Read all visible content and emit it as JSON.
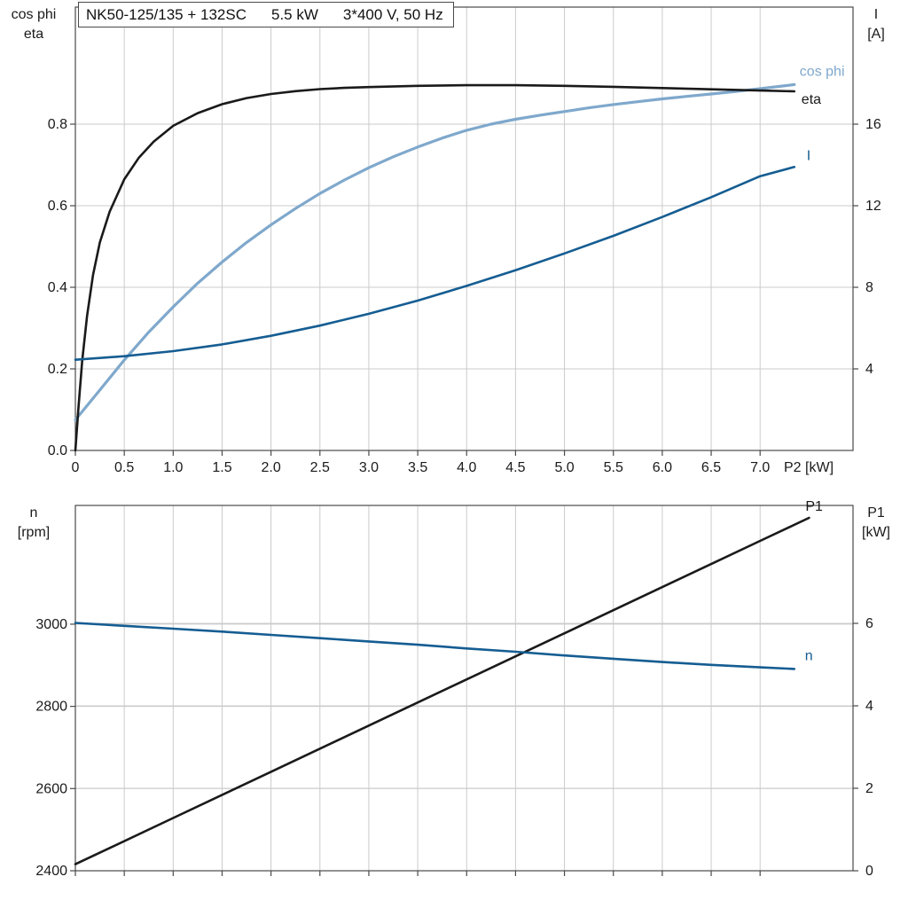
{
  "title": {
    "parts": [
      "NK50-125/135 + 132SC",
      "5.5 kW",
      "3*400 V, 50 Hz"
    ]
  },
  "colors": {
    "background": "#ffffff",
    "grid": "#cbcbcb",
    "frame": "#4a4a4a",
    "text": "#1a1a1a",
    "black_curve": "#1a1a1a",
    "light_blue_curve": "#7fa8cc",
    "dark_blue_curve": "#155d92"
  },
  "chart_data": [
    {
      "type": "line",
      "id": "electrical",
      "title": "NK50-125/135 + 132SC   5.5 kW   3*400 V, 50 Hz",
      "x_axis": {
        "title": "P2 [kW]",
        "min": 0,
        "max": 7.95,
        "tick_values": [
          0,
          0.5,
          1,
          1.5,
          2,
          2.5,
          3,
          3.5,
          4,
          4.5,
          5,
          5.5,
          6,
          6.5,
          7
        ],
        "tick_labels": [
          "0",
          "0.5",
          "1.0",
          "1.5",
          "2.0",
          "2.5",
          "3.0",
          "3.5",
          "4.0",
          "4.5",
          "5.0",
          "5.5",
          "6.0",
          "6.5",
          "7.0"
        ]
      },
      "y_left": {
        "header": [
          "cos phi",
          "eta"
        ],
        "min": 0,
        "max": 1.087,
        "tick_values": [
          0,
          0.2,
          0.4,
          0.6,
          0.8
        ],
        "tick_labels": [
          "0.0",
          "0.2",
          "0.4",
          "0.6",
          "0.8"
        ]
      },
      "y_right": {
        "header": [
          "I",
          "[A]"
        ],
        "min": 0,
        "max": 21.74,
        "tick_values": [
          4,
          8,
          12,
          16
        ],
        "tick_labels": [
          "4",
          "8",
          "12",
          "16"
        ]
      },
      "series": [
        {
          "name": "cos phi",
          "label": "cos phi",
          "axis": "left",
          "color": "#7fa8cc",
          "width": 3.2,
          "points": [
            [
              0,
              0.075
            ],
            [
              0.25,
              0.148
            ],
            [
              0.5,
              0.222
            ],
            [
              0.75,
              0.29
            ],
            [
              1,
              0.352
            ],
            [
              1.25,
              0.41
            ],
            [
              1.5,
              0.462
            ],
            [
              1.75,
              0.51
            ],
            [
              2,
              0.553
            ],
            [
              2.25,
              0.593
            ],
            [
              2.5,
              0.63
            ],
            [
              2.75,
              0.663
            ],
            [
              3,
              0.693
            ],
            [
              3.25,
              0.72
            ],
            [
              3.5,
              0.744
            ],
            [
              3.75,
              0.766
            ],
            [
              4,
              0.785
            ],
            [
              4.25,
              0.8
            ],
            [
              4.5,
              0.812
            ],
            [
              4.75,
              0.822
            ],
            [
              5,
              0.831
            ],
            [
              5.25,
              0.84
            ],
            [
              5.5,
              0.848
            ],
            [
              5.75,
              0.855
            ],
            [
              6,
              0.862
            ],
            [
              6.25,
              0.868
            ],
            [
              6.5,
              0.874
            ],
            [
              6.75,
              0.88
            ],
            [
              7,
              0.887
            ],
            [
              7.35,
              0.897
            ]
          ]
        },
        {
          "name": "eta",
          "label": "eta",
          "axis": "left",
          "color": "#1a1a1a",
          "width": 2.6,
          "points": [
            [
              0,
              0
            ],
            [
              0.03,
              0.1
            ],
            [
              0.07,
              0.22
            ],
            [
              0.12,
              0.33
            ],
            [
              0.18,
              0.43
            ],
            [
              0.25,
              0.51
            ],
            [
              0.35,
              0.585
            ],
            [
              0.5,
              0.665
            ],
            [
              0.65,
              0.718
            ],
            [
              0.8,
              0.757
            ],
            [
              1,
              0.796
            ],
            [
              1.25,
              0.827
            ],
            [
              1.5,
              0.849
            ],
            [
              1.75,
              0.864
            ],
            [
              2,
              0.874
            ],
            [
              2.25,
              0.881
            ],
            [
              2.5,
              0.886
            ],
            [
              2.75,
              0.889
            ],
            [
              3,
              0.891
            ],
            [
              3.5,
              0.894
            ],
            [
              4,
              0.8955
            ],
            [
              4.5,
              0.8955
            ],
            [
              5,
              0.894
            ],
            [
              5.5,
              0.8915
            ],
            [
              6,
              0.8885
            ],
            [
              6.5,
              0.8855
            ],
            [
              7,
              0.8825
            ],
            [
              7.35,
              0.8805
            ]
          ]
        },
        {
          "name": "I",
          "label": "I",
          "axis": "right",
          "color": "#155d92",
          "width": 2.6,
          "points": [
            [
              0,
              4.45
            ],
            [
              0.5,
              4.62
            ],
            [
              1,
              4.87
            ],
            [
              1.5,
              5.2
            ],
            [
              2,
              5.62
            ],
            [
              2.5,
              6.12
            ],
            [
              3,
              6.7
            ],
            [
              3.5,
              7.35
            ],
            [
              4,
              8.07
            ],
            [
              4.5,
              8.84
            ],
            [
              5,
              9.66
            ],
            [
              5.5,
              10.52
            ],
            [
              6,
              11.45
            ],
            [
              6.5,
              12.42
            ],
            [
              7,
              13.45
            ],
            [
              7.35,
              13.9
            ]
          ]
        }
      ]
    },
    {
      "type": "line",
      "id": "speed-power",
      "x_axis": {
        "title": "",
        "min": 0,
        "max": 7.95,
        "tick_values": [
          0,
          0.5,
          1,
          1.5,
          2,
          2.5,
          3,
          3.5,
          4,
          4.5,
          5,
          5.5,
          6,
          6.5,
          7
        ],
        "tick_labels": []
      },
      "y_left": {
        "header": [
          "n",
          "[rpm]"
        ],
        "min": 2400,
        "max": 3289,
        "tick_values": [
          2400,
          2600,
          2800,
          3000
        ],
        "tick_labels": [
          "2400",
          "2600",
          "2800",
          "3000"
        ]
      },
      "y_right": {
        "header": [
          "P1",
          "[kW]"
        ],
        "min": 0,
        "max": 8.86,
        "tick_values": [
          0,
          2,
          4,
          6
        ],
        "tick_labels": [
          "0",
          "2",
          "4",
          "6"
        ]
      },
      "series": [
        {
          "name": "P1",
          "label": "P1",
          "axis": "right",
          "color": "#1a1a1a",
          "width": 2.6,
          "points": [
            [
              0,
              0.16
            ],
            [
              1,
              1.28
            ],
            [
              2,
              2.4
            ],
            [
              3,
              3.52
            ],
            [
              4,
              4.64
            ],
            [
              5,
              5.76
            ],
            [
              6,
              6.88
            ],
            [
              7,
              8.0
            ],
            [
              7.5,
              8.56
            ]
          ]
        },
        {
          "name": "n",
          "label": "n",
          "axis": "left",
          "color": "#155d92",
          "width": 2.6,
          "points": [
            [
              0,
              3003
            ],
            [
              0.5,
              2996
            ],
            [
              1,
              2989
            ],
            [
              1.5,
              2982
            ],
            [
              2,
              2974
            ],
            [
              2.5,
              2966
            ],
            [
              3,
              2958
            ],
            [
              3.5,
              2950
            ],
            [
              4,
              2941
            ],
            [
              4.5,
              2933
            ],
            [
              5,
              2924
            ],
            [
              5.5,
              2916
            ],
            [
              6,
              2908
            ],
            [
              6.5,
              2901
            ],
            [
              7,
              2895
            ],
            [
              7.35,
              2891
            ]
          ]
        }
      ]
    }
  ]
}
